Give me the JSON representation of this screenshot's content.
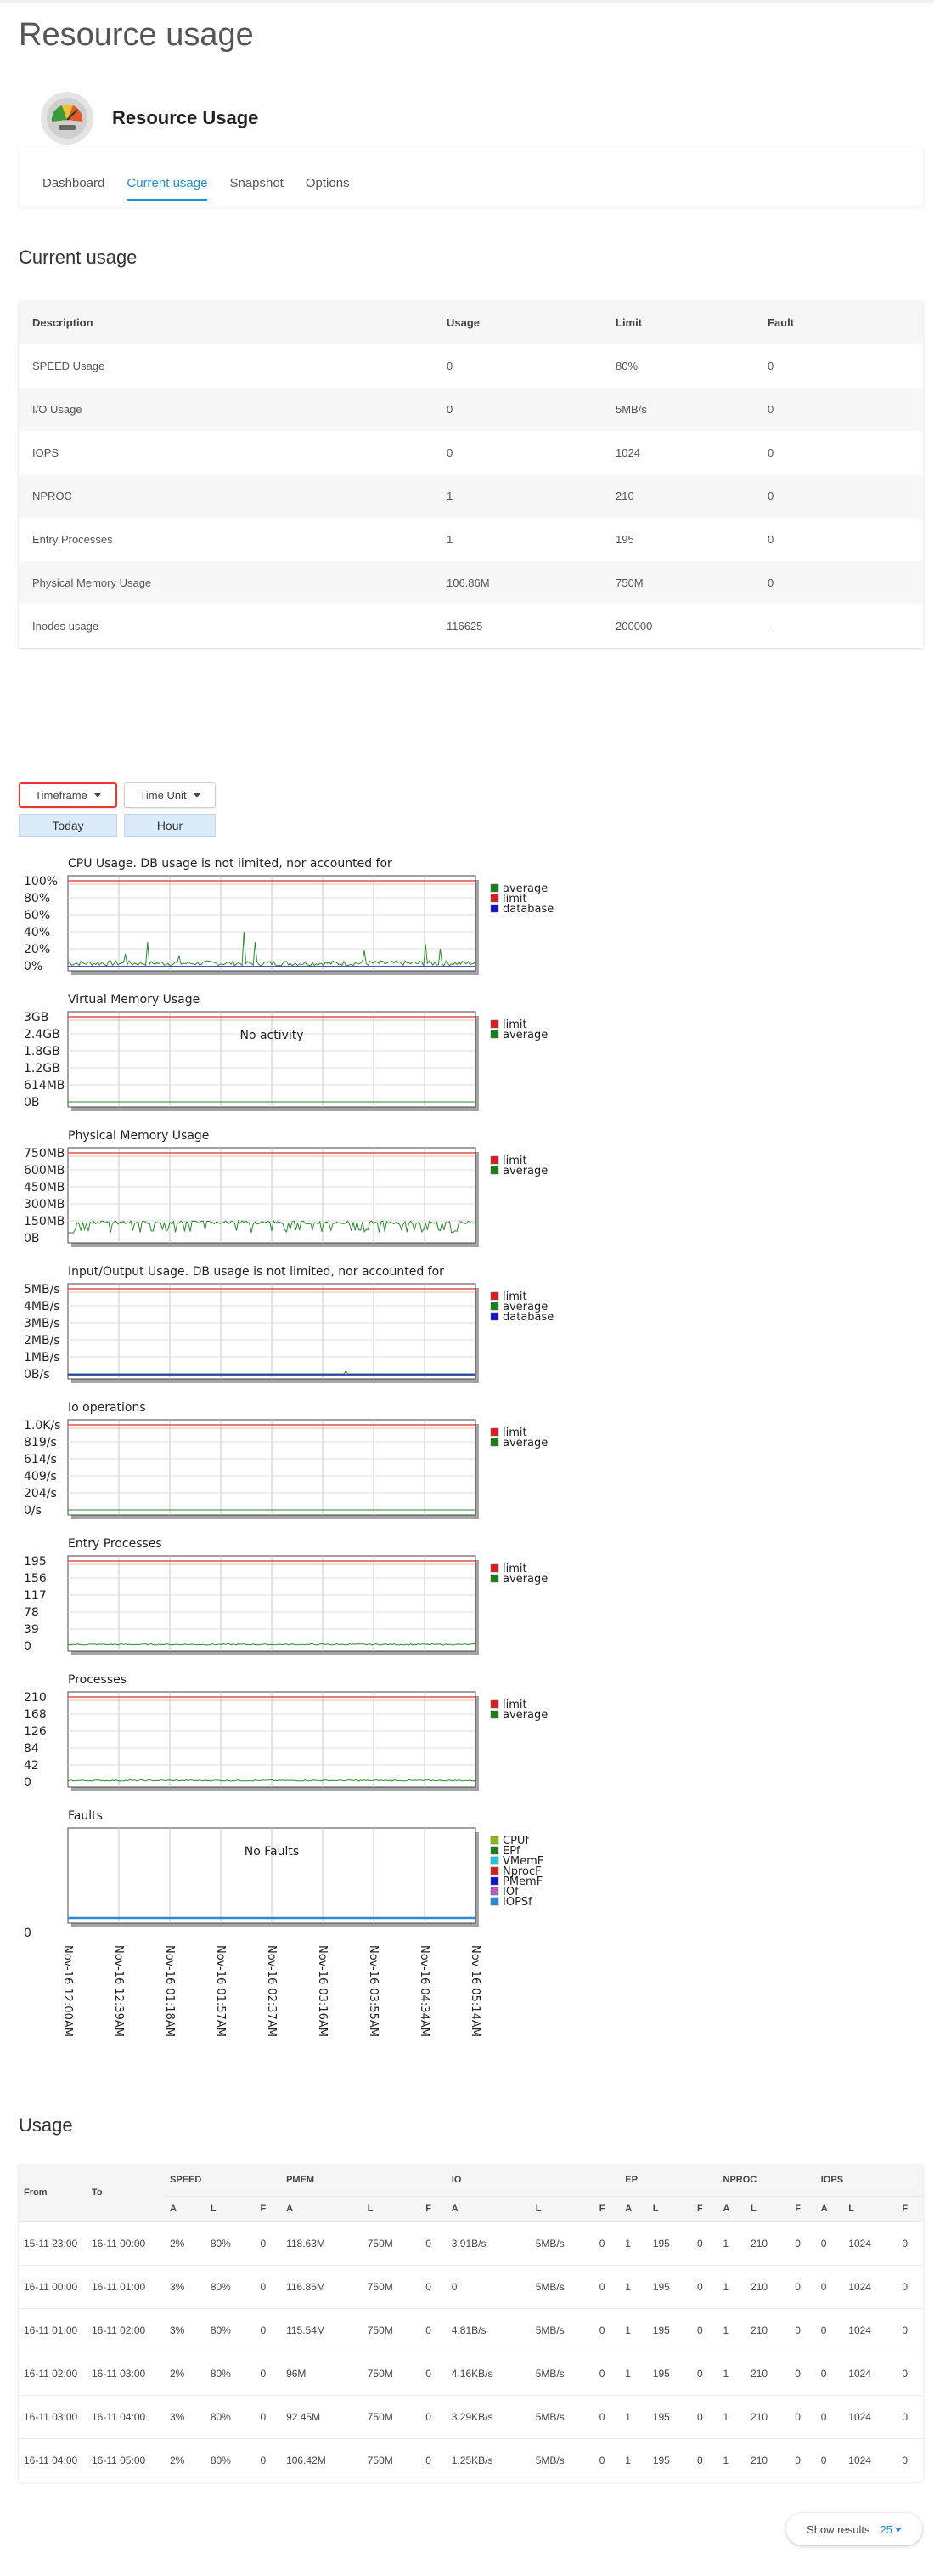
{
  "page": {
    "title": "Resource usage"
  },
  "plugin": {
    "title": "Resource Usage"
  },
  "tabs": [
    {
      "label": "Dashboard",
      "active": false
    },
    {
      "label": "Current usage",
      "active": true
    },
    {
      "label": "Snapshot",
      "active": false
    },
    {
      "label": "Options",
      "active": false
    }
  ],
  "current_usage": {
    "title": "Current usage",
    "headers": [
      "Description",
      "Usage",
      "Limit",
      "Fault"
    ],
    "rows": [
      [
        "SPEED Usage",
        "0",
        "80%",
        "0"
      ],
      [
        "I/O Usage",
        "0",
        "5MB/s",
        "0"
      ],
      [
        "IOPS",
        "0",
        "1024",
        "0"
      ],
      [
        "NPROC",
        "1",
        "210",
        "0"
      ],
      [
        "Entry Processes",
        "1",
        "195",
        "0"
      ],
      [
        "Physical Memory Usage",
        "106.86M",
        "750M",
        "0"
      ],
      [
        "Inodes usage",
        "116625",
        "200000",
        "-"
      ]
    ]
  },
  "filters": {
    "timeframe_label": "Timeframe",
    "timeframe_value": "Today",
    "timeunit_label": "Time Unit",
    "timeunit_value": "Hour"
  },
  "chart_data": [
    {
      "type": "line",
      "title": "CPU Usage. DB usage is not limited, nor accounted for",
      "yticks": [
        "100%",
        "80%",
        "60%",
        "40%",
        "20%",
        "0%"
      ],
      "ylim": [
        0,
        100
      ],
      "legend": [
        [
          "average",
          "#1a7f1a"
        ],
        [
          "limit",
          "#d42020"
        ],
        [
          "database",
          "#1414c8"
        ]
      ],
      "limit": 80,
      "series": "cpu"
    },
    {
      "type": "line",
      "title": "Virtual Memory Usage",
      "yticks": [
        "3GB",
        "2.4GB",
        "1.8GB",
        "1.2GB",
        "614MB",
        "0B"
      ],
      "legend": [
        [
          "limit",
          "#d42020"
        ],
        [
          "average",
          "#1a7f1a"
        ]
      ],
      "message": "No activity",
      "series": "flat"
    },
    {
      "type": "line",
      "title": "Physical Memory Usage",
      "yticks": [
        "750MB",
        "600MB",
        "450MB",
        "300MB",
        "150MB",
        "0B"
      ],
      "ylim": [
        0,
        750
      ],
      "legend": [
        [
          "limit",
          "#d42020"
        ],
        [
          "average",
          "#1a7f1a"
        ]
      ],
      "series": "pmem"
    },
    {
      "type": "line",
      "title": "Input/Output Usage. DB usage is not limited, nor accounted for",
      "yticks": [
        "5MB/s",
        "4MB/s",
        "3MB/s",
        "2MB/s",
        "1MB/s",
        "0B/s"
      ],
      "legend": [
        [
          "limit",
          "#d42020"
        ],
        [
          "average",
          "#1a7f1a"
        ],
        [
          "database",
          "#1414c8"
        ]
      ],
      "series": "io"
    },
    {
      "type": "line",
      "title": "Io operations",
      "yticks": [
        "1.0K/s",
        "819/s",
        "614/s",
        "409/s",
        "204/s",
        "0/s"
      ],
      "legend": [
        [
          "limit",
          "#d42020"
        ],
        [
          "average",
          "#1a7f1a"
        ]
      ],
      "series": "flat"
    },
    {
      "type": "line",
      "title": "Entry Processes",
      "yticks": [
        "195",
        "156",
        "117",
        "78",
        "39",
        "0"
      ],
      "legend": [
        [
          "limit",
          "#d42020"
        ],
        [
          "average",
          "#1a7f1a"
        ]
      ],
      "series": "low"
    },
    {
      "type": "line",
      "title": "Processes",
      "yticks": [
        "210",
        "168",
        "126",
        "84",
        "42",
        "0"
      ],
      "legend": [
        [
          "limit",
          "#d42020"
        ],
        [
          "average",
          "#1a7f1a"
        ]
      ],
      "series": "low"
    },
    {
      "type": "line",
      "title": "Faults",
      "yticks": [
        "0"
      ],
      "legend": [
        [
          "CPUf",
          "#8bb81a"
        ],
        [
          "EPf",
          "#1a7f1a"
        ],
        [
          "VMemF",
          "#20c8e8"
        ],
        [
          "NprocF",
          "#d42020"
        ],
        [
          "PMemF",
          "#1414c8"
        ],
        [
          "IOf",
          "#b060c0"
        ],
        [
          "IOPSf",
          "#2a8ad8"
        ]
      ],
      "message": "No Faults",
      "series": "faults"
    }
  ],
  "x_ticks": [
    "Nov-16 12:00AM",
    "Nov-16 12:39AM",
    "Nov-16 01:18AM",
    "Nov-16 01:57AM",
    "Nov-16 02:37AM",
    "Nov-16 03:16AM",
    "Nov-16 03:55AM",
    "Nov-16 04:34AM",
    "Nov-16 05:14AM"
  ],
  "usage": {
    "title": "Usage",
    "from_label": "From",
    "to_label": "To",
    "groups": [
      "SPEED",
      "PMEM",
      "IO",
      "EP",
      "NPROC",
      "IOPS"
    ],
    "sub": [
      "A",
      "L",
      "F"
    ],
    "rows": [
      [
        "15-11 23:00",
        "16-11 00:00",
        "2%",
        "80%",
        "0",
        "118.63M",
        "750M",
        "0",
        "3.91B/s",
        "5MB/s",
        "0",
        "1",
        "195",
        "0",
        "1",
        "210",
        "0",
        "0",
        "1024",
        "0"
      ],
      [
        "16-11 00:00",
        "16-11 01:00",
        "3%",
        "80%",
        "0",
        "116.86M",
        "750M",
        "0",
        "0",
        "5MB/s",
        "0",
        "1",
        "195",
        "0",
        "1",
        "210",
        "0",
        "0",
        "1024",
        "0"
      ],
      [
        "16-11 01:00",
        "16-11 02:00",
        "3%",
        "80%",
        "0",
        "115.54M",
        "750M",
        "0",
        "4.81B/s",
        "5MB/s",
        "0",
        "1",
        "195",
        "0",
        "1",
        "210",
        "0",
        "0",
        "1024",
        "0"
      ],
      [
        "16-11 02:00",
        "16-11 03:00",
        "2%",
        "80%",
        "0",
        "96M",
        "750M",
        "0",
        "4.16KB/s",
        "5MB/s",
        "0",
        "1",
        "195",
        "0",
        "1",
        "210",
        "0",
        "0",
        "1024",
        "0"
      ],
      [
        "16-11 03:00",
        "16-11 04:00",
        "3%",
        "80%",
        "0",
        "92.45M",
        "750M",
        "0",
        "3.29KB/s",
        "5MB/s",
        "0",
        "1",
        "195",
        "0",
        "1",
        "210",
        "0",
        "0",
        "1024",
        "0"
      ],
      [
        "16-11 04:00",
        "16-11 05:00",
        "2%",
        "80%",
        "0",
        "106.42M",
        "750M",
        "0",
        "1.25KB/s",
        "5MB/s",
        "0",
        "1",
        "195",
        "0",
        "1",
        "210",
        "0",
        "0",
        "1024",
        "0"
      ]
    ]
  },
  "pagination": {
    "label": "Show results",
    "value": "25"
  }
}
